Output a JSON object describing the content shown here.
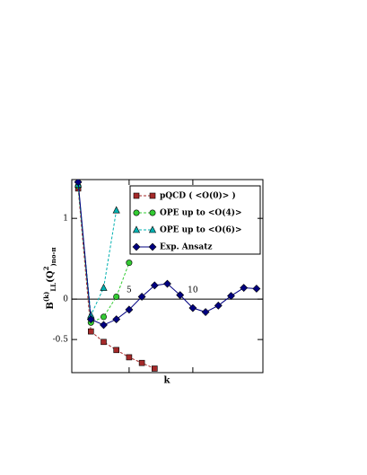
{
  "chart_data": {
    "type": "line",
    "x_label": "k",
    "y_label": [
      "B",
      "(k)",
      "LL",
      "(Q",
      "2",
      ")",
      "no-π"
    ],
    "x": [
      1,
      2,
      3,
      4,
      5,
      6,
      7,
      8,
      9,
      10,
      11,
      12,
      13,
      14,
      15
    ],
    "series": [
      {
        "name": "pQCD   ( <O(0)> )",
        "color": "#a52a2a",
        "marker": "square",
        "dash": true,
        "values": [
          1.37,
          -0.4,
          -0.53,
          -0.63,
          -0.72,
          -0.79,
          -0.86,
          null,
          null,
          null,
          null,
          null,
          null,
          null,
          null
        ]
      },
      {
        "name": "OPE up to <O(4)>",
        "color": "#33cc33",
        "marker": "circle",
        "dash": true,
        "values": [
          1.4,
          -0.29,
          -0.22,
          0.03,
          0.45,
          null,
          null,
          null,
          null,
          null,
          null,
          null,
          null,
          null,
          null
        ]
      },
      {
        "name": "OPE up to <O(6)>",
        "color": "#00b0b0",
        "marker": "triangle",
        "dash": true,
        "values": [
          1.42,
          -0.2,
          0.14,
          1.1,
          null,
          null,
          null,
          null,
          null,
          null,
          null,
          null,
          null,
          null,
          null
        ]
      },
      {
        "name": "Exp. Ansatz",
        "color": "#000080",
        "marker": "diamond",
        "dash": false,
        "values": [
          1.45,
          -0.25,
          -0.32,
          -0.25,
          -0.13,
          0.03,
          0.17,
          0.19,
          0.05,
          -0.11,
          -0.16,
          -0.08,
          0.04,
          0.14,
          0.13
        ]
      }
    ],
    "xlim": [
      0.5,
      15.5
    ],
    "xticks": [
      5,
      10
    ],
    "ylim": [
      -0.91,
      1.48
    ],
    "yticks": [
      1,
      0,
      -0.5
    ]
  }
}
